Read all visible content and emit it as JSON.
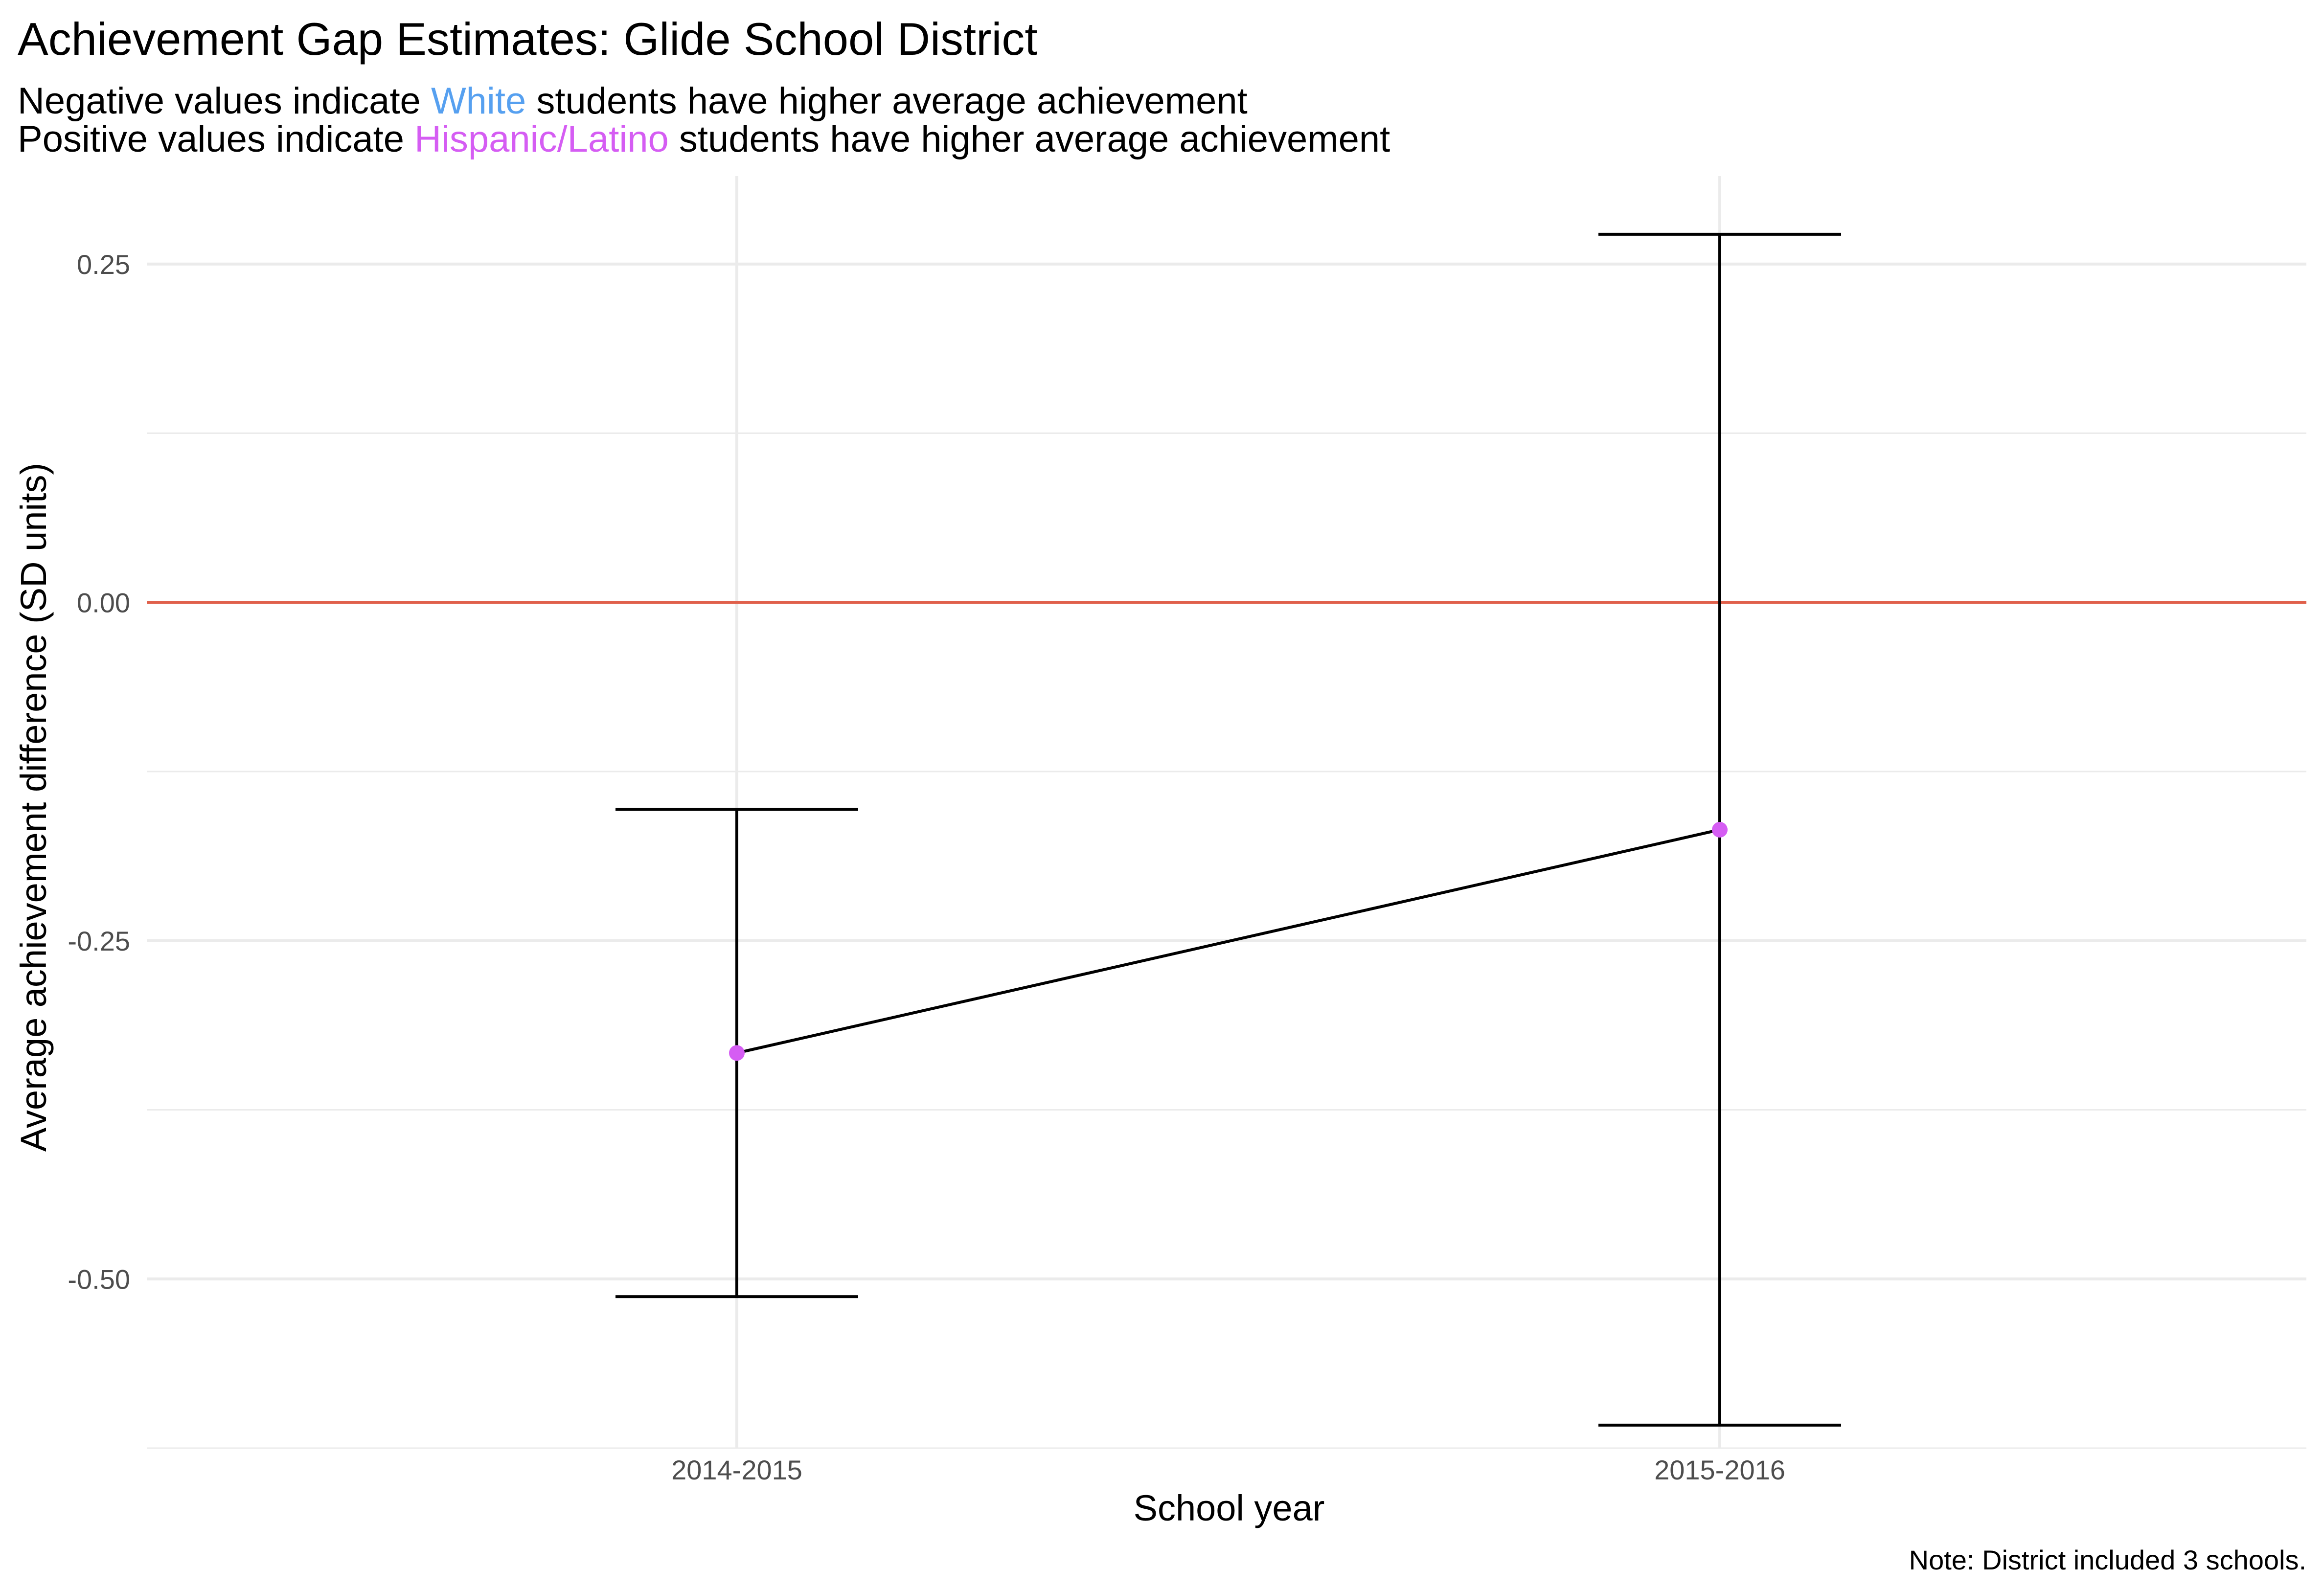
{
  "chart_data": {
    "type": "line",
    "title": "Achievement Gap Estimates: Glide School District",
    "subtitle": {
      "line1": {
        "pre": "Negative values indicate ",
        "group": "White",
        "post": " students have higher average achievement"
      },
      "line2": {
        "pre": "Positive values indicate ",
        "group": "Hispanic/Latino",
        "post": " students have higher average achievement"
      }
    },
    "xlabel": "School year",
    "ylabel": "Average achievement difference (SD units)",
    "caption": "Note: District included 3 schools.",
    "categories": [
      "2014-2015",
      "2015-2016"
    ],
    "estimates": [
      -0.333,
      -0.168
    ],
    "ci_lower": [
      -0.513,
      -0.608
    ],
    "ci_upper": [
      -0.153,
      0.272
    ],
    "reference_line": 0,
    "ylim": [
      -0.625,
      0.315
    ],
    "yticks": [
      0.25,
      0.0,
      -0.25,
      -0.5
    ],
    "ytick_labels": [
      "0.25",
      "0.00",
      "-0.25",
      "-0.50"
    ],
    "minor_gridlines": [
      0.125,
      -0.125,
      -0.375,
      -0.625
    ],
    "grid": true,
    "colors": {
      "white_group": "#56A0F0",
      "hispanic_group": "#D55DF3",
      "point": "#D55DF3",
      "reference_line": "#E0604B",
      "line": "#000000",
      "grid": "#EBEBEB"
    }
  }
}
